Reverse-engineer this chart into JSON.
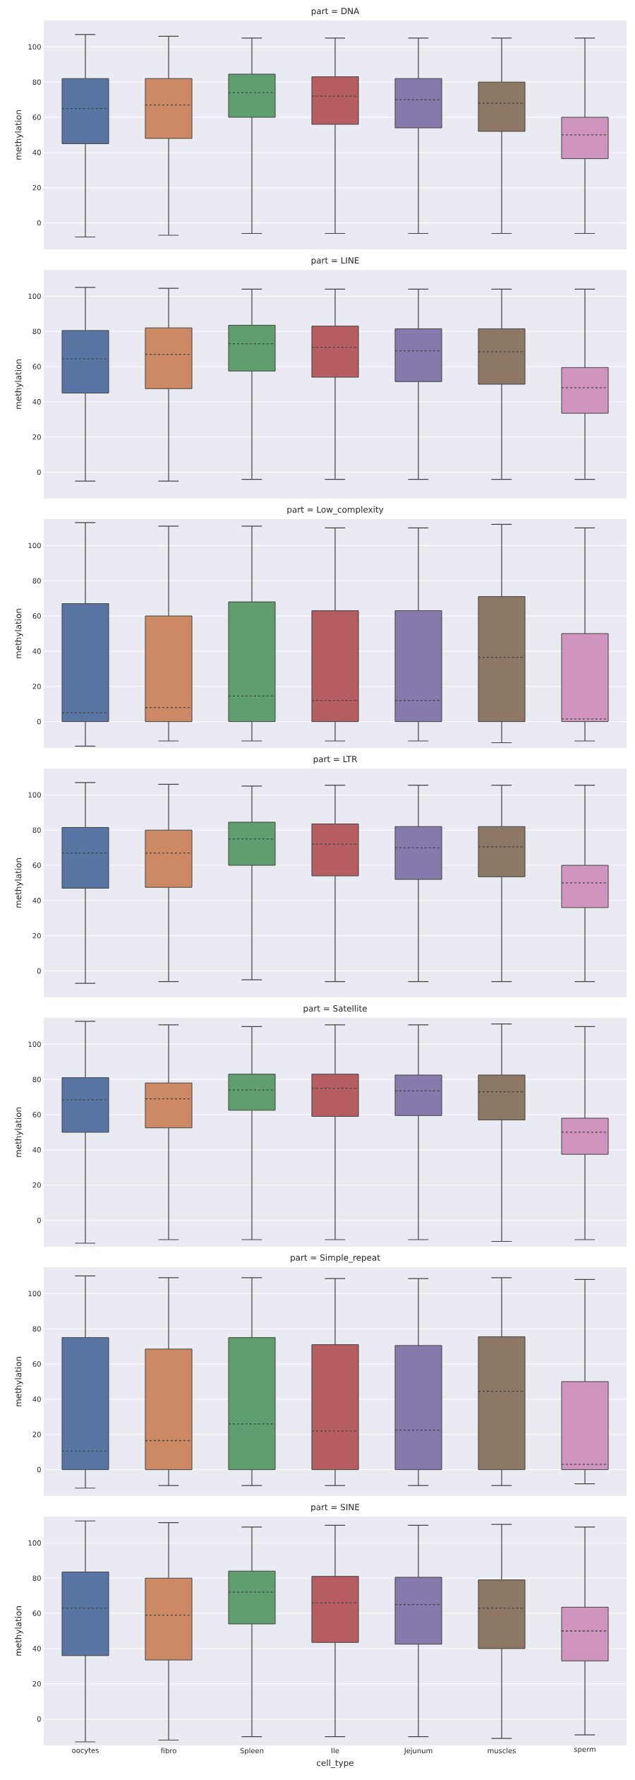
{
  "chart_data": [
    {
      "type": "box",
      "title": "part = DNA",
      "ylabel": "methylation",
      "colors": [
        "#5975a4",
        "#cc8963",
        "#5f9e6e",
        "#b55d60",
        "#857aab",
        "#8d7866",
        "#d095bf"
      ],
      "ylim": [
        -15,
        115
      ],
      "yticks": [
        0,
        20,
        40,
        60,
        80,
        100
      ],
      "grid": "y",
      "tick_labels": "y",
      "boxes": [
        {
          "low": -8,
          "q1": 45,
          "median": 65,
          "q3": 82,
          "high": 107
        },
        {
          "low": -7,
          "q1": 48,
          "median": 67,
          "q3": 82,
          "high": 106
        },
        {
          "low": -6,
          "q1": 60,
          "median": 74,
          "q3": 84.5,
          "high": 105
        },
        {
          "low": -6,
          "q1": 56,
          "median": 72,
          "q3": 83,
          "high": 105
        },
        {
          "low": -6,
          "q1": 54,
          "median": 70,
          "q3": 82,
          "high": 105
        },
        {
          "low": -6,
          "q1": 52,
          "median": 68,
          "q3": 80,
          "high": 105
        },
        {
          "low": -6,
          "q1": 36.5,
          "median": 50,
          "q3": 60,
          "high": 105
        }
      ]
    },
    {
      "type": "box",
      "title": "part = LINE",
      "ylabel": "methylation",
      "colors": [
        "#5975a4",
        "#cc8963",
        "#5f9e6e",
        "#b55d60",
        "#857aab",
        "#8d7866",
        "#d095bf"
      ],
      "ylim": [
        -15,
        115
      ],
      "yticks": [
        0,
        20,
        40,
        60,
        80,
        100
      ],
      "grid": "y",
      "tick_labels": "y",
      "boxes": [
        {
          "low": -5,
          "q1": 45,
          "median": 64.5,
          "q3": 80.5,
          "high": 105
        },
        {
          "low": -5,
          "q1": 47.5,
          "median": 67,
          "q3": 82,
          "high": 104.5
        },
        {
          "low": -4,
          "q1": 57.5,
          "median": 73,
          "q3": 83.5,
          "high": 104
        },
        {
          "low": -4,
          "q1": 54,
          "median": 71,
          "q3": 83,
          "high": 104
        },
        {
          "low": -4,
          "q1": 51.5,
          "median": 69,
          "q3": 81.5,
          "high": 104
        },
        {
          "low": -4,
          "q1": 50,
          "median": 68.5,
          "q3": 81.5,
          "high": 104
        },
        {
          "low": -4,
          "q1": 33.5,
          "median": 48,
          "q3": 59.5,
          "high": 104
        }
      ]
    },
    {
      "type": "box",
      "title": "part = Low_complexity",
      "ylabel": "methylation",
      "colors": [
        "#5975a4",
        "#cc8963",
        "#5f9e6e",
        "#b55d60",
        "#857aab",
        "#8d7866",
        "#d095bf"
      ],
      "ylim": [
        -15,
        115
      ],
      "yticks": [
        0,
        20,
        40,
        60,
        80,
        100
      ],
      "grid": "y",
      "tick_labels": "y",
      "boxes": [
        {
          "low": -14,
          "q1": 0,
          "median": 5,
          "q3": 67,
          "high": 113
        },
        {
          "low": -11,
          "q1": 0,
          "median": 8,
          "q3": 60,
          "high": 111
        },
        {
          "low": -11,
          "q1": 0,
          "median": 14.5,
          "q3": 68,
          "high": 111
        },
        {
          "low": -11,
          "q1": 0,
          "median": 12,
          "q3": 63,
          "high": 110
        },
        {
          "low": -11,
          "q1": 0,
          "median": 12,
          "q3": 63,
          "high": 110
        },
        {
          "low": -12,
          "q1": 0,
          "median": 36.5,
          "q3": 71,
          "high": 112
        },
        {
          "low": -11,
          "q1": 0,
          "median": 1.5,
          "q3": 50,
          "high": 110
        }
      ]
    },
    {
      "type": "box",
      "title": "part = LTR",
      "ylabel": "methylation",
      "colors": [
        "#5975a4",
        "#cc8963",
        "#5f9e6e",
        "#b55d60",
        "#857aab",
        "#8d7866",
        "#d095bf"
      ],
      "ylim": [
        -15,
        115
      ],
      "yticks": [
        0,
        20,
        40,
        60,
        80,
        100
      ],
      "grid": "y",
      "tick_labels": "y",
      "boxes": [
        {
          "low": -7,
          "q1": 47,
          "median": 67,
          "q3": 81.5,
          "high": 107
        },
        {
          "low": -6,
          "q1": 47.5,
          "median": 67,
          "q3": 80,
          "high": 106
        },
        {
          "low": -5,
          "q1": 60,
          "median": 75,
          "q3": 84.5,
          "high": 105
        },
        {
          "low": -6,
          "q1": 54,
          "median": 72,
          "q3": 83.5,
          "high": 105.5
        },
        {
          "low": -6,
          "q1": 52,
          "median": 70,
          "q3": 82,
          "high": 105.5
        },
        {
          "low": -6,
          "q1": 53.5,
          "median": 70.5,
          "q3": 82,
          "high": 105.5
        },
        {
          "low": -6,
          "q1": 36,
          "median": 50,
          "q3": 60,
          "high": 105.5
        }
      ]
    },
    {
      "type": "box",
      "title": "part = Satellite",
      "ylabel": "methylation",
      "colors": [
        "#5975a4",
        "#cc8963",
        "#5f9e6e",
        "#b55d60",
        "#857aab",
        "#8d7866",
        "#d095bf"
      ],
      "ylim": [
        -15,
        115
      ],
      "yticks": [
        0,
        20,
        40,
        60,
        80,
        100
      ],
      "grid": "y",
      "tick_labels": "y",
      "boxes": [
        {
          "low": -13,
          "q1": 50,
          "median": 68.5,
          "q3": 81,
          "high": 113
        },
        {
          "low": -11,
          "q1": 52.5,
          "median": 69,
          "q3": 78,
          "high": 111
        },
        {
          "low": -11,
          "q1": 62.5,
          "median": 74,
          "q3": 83,
          "high": 110
        },
        {
          "low": -11,
          "q1": 59,
          "median": 75,
          "q3": 83,
          "high": 111
        },
        {
          "low": -11,
          "q1": 59.5,
          "median": 73.5,
          "q3": 82.5,
          "high": 111
        },
        {
          "low": -12,
          "q1": 57,
          "median": 73,
          "q3": 82.5,
          "high": 111.5
        },
        {
          "low": -11,
          "q1": 37.5,
          "median": 50,
          "q3": 58,
          "high": 110
        }
      ]
    },
    {
      "type": "box",
      "title": "part = Simple_repeat",
      "ylabel": "methylation",
      "colors": [
        "#5975a4",
        "#cc8963",
        "#5f9e6e",
        "#b55d60",
        "#857aab",
        "#8d7866",
        "#d095bf"
      ],
      "ylim": [
        -15,
        115
      ],
      "yticks": [
        0,
        20,
        40,
        60,
        80,
        100
      ],
      "grid": "y",
      "tick_labels": "y",
      "boxes": [
        {
          "low": -10.5,
          "q1": 0,
          "median": 10.5,
          "q3": 75,
          "high": 110
        },
        {
          "low": -9,
          "q1": 0,
          "median": 16.5,
          "q3": 68.5,
          "high": 109
        },
        {
          "low": -9,
          "q1": 0,
          "median": 26,
          "q3": 75,
          "high": 109
        },
        {
          "low": -9,
          "q1": 0,
          "median": 22,
          "q3": 71,
          "high": 108.5
        },
        {
          "low": -9,
          "q1": 0,
          "median": 22.5,
          "q3": 70.5,
          "high": 108.5
        },
        {
          "low": -9,
          "q1": 0,
          "median": 44.5,
          "q3": 75.5,
          "high": 109
        },
        {
          "low": -8,
          "q1": 0,
          "median": 3,
          "q3": 50,
          "high": 108
        }
      ]
    },
    {
      "type": "box",
      "title": "part = SINE",
      "ylabel": "methylation",
      "xlabel": "cell_type",
      "categories": [
        "oocytes",
        "fibro",
        "Spleen",
        "Ile",
        "Jejunum",
        "muscles",
        "sperm"
      ],
      "colors": [
        "#5975a4",
        "#cc8963",
        "#5f9e6e",
        "#b55d60",
        "#857aab",
        "#8d7866",
        "#d095bf"
      ],
      "ylim": [
        -15,
        115
      ],
      "yticks": [
        0,
        20,
        40,
        60,
        80,
        100
      ],
      "grid": "y",
      "boxes": [
        {
          "low": -13,
          "q1": 36,
          "median": 63,
          "q3": 83.5,
          "high": 112.5
        },
        {
          "low": -12,
          "q1": 33.5,
          "median": 59,
          "q3": 80,
          "high": 111.5
        },
        {
          "low": -10,
          "q1": 54,
          "median": 72,
          "q3": 84,
          "high": 109
        },
        {
          "low": -10,
          "q1": 43.5,
          "median": 66,
          "q3": 81,
          "high": 110
        },
        {
          "low": -10,
          "q1": 42.5,
          "median": 65,
          "q3": 80.5,
          "high": 110
        },
        {
          "low": -11,
          "q1": 40,
          "median": 63,
          "q3": 79,
          "high": 110.5
        },
        {
          "low": -9,
          "q1": 33,
          "median": 50,
          "q3": 63.5,
          "high": 109
        }
      ]
    }
  ]
}
